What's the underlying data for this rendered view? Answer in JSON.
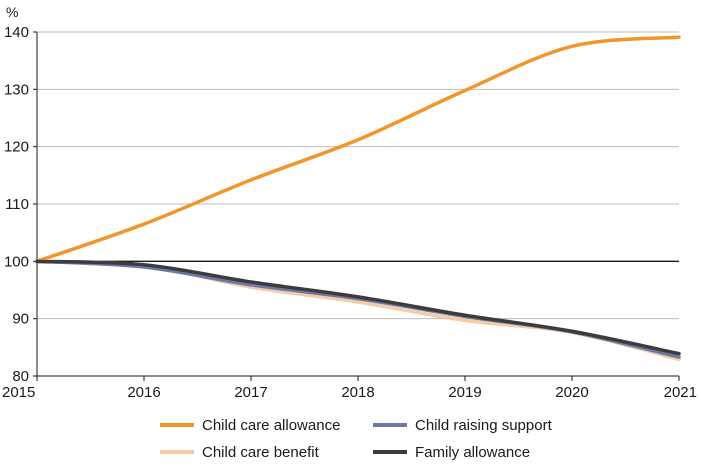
{
  "chart_data": {
    "type": "line",
    "title": "",
    "xlabel": "",
    "ylabel": "%",
    "x": [
      2015,
      2016,
      2017,
      2018,
      2019,
      2020,
      2021
    ],
    "xticks": [
      "2015",
      "2016",
      "2017",
      "2018",
      "2019",
      "2020",
      "2021"
    ],
    "yticks": [
      "80",
      "90",
      "100",
      "110",
      "120",
      "130",
      "140"
    ],
    "ylim": [
      80,
      140
    ],
    "xlim": [
      2015,
      2021
    ],
    "grid": "horizontal",
    "reference_line": 100,
    "legend_position": "bottom",
    "series": [
      {
        "name": "Child care allowance",
        "color": "#f0962a",
        "values": [
          100,
          106.5,
          114.2,
          121.2,
          129.8,
          137.5,
          139.1
        ]
      },
      {
        "name": "Child raising support",
        "color": "#6e78a8",
        "values": [
          100,
          99.0,
          95.9,
          93.5,
          90.4,
          87.7,
          83.3
        ]
      },
      {
        "name": "Child care benefit",
        "color": "#f6cba6",
        "values": [
          100,
          99.3,
          95.5,
          92.9,
          89.7,
          87.6,
          82.9
        ]
      },
      {
        "name": "Family allowance",
        "color": "#3c3c3c",
        "values": [
          100,
          99.4,
          96.4,
          93.8,
          90.6,
          87.8,
          83.9
        ]
      }
    ]
  }
}
